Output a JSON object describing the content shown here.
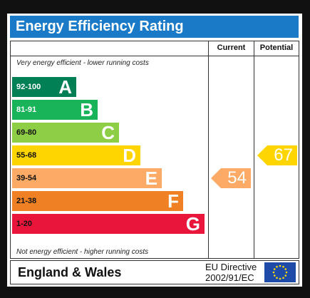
{
  "title": "Energy Efficiency Rating",
  "columns": {
    "current": "Current",
    "potential": "Potential"
  },
  "top_note": "Very energy efficient - lower running costs",
  "bottom_note": "Not energy efficient - higher running costs",
  "footer": {
    "region": "England & Wales",
    "directive_line1": "EU Directive",
    "directive_line2": "2002/91/EC",
    "flag_icon": "eu-flag-icon"
  },
  "chart_data": {
    "type": "bar",
    "bands": [
      {
        "range": "92-100",
        "letter": "A",
        "color": "#008054"
      },
      {
        "range": "81-91",
        "letter": "B",
        "color": "#19b459"
      },
      {
        "range": "69-80",
        "letter": "C",
        "color": "#8dce46"
      },
      {
        "range": "55-68",
        "letter": "D",
        "color": "#ffd500"
      },
      {
        "range": "39-54",
        "letter": "E",
        "color": "#fcaa65"
      },
      {
        "range": "21-38",
        "letter": "F",
        "color": "#ef8023"
      },
      {
        "range": "1-20",
        "letter": "G",
        "color": "#e9153b"
      }
    ],
    "current": {
      "value": 54,
      "band": "E",
      "color": "#fcaa65"
    },
    "potential": {
      "value": 67,
      "band": "D",
      "color": "#ffd500"
    }
  }
}
